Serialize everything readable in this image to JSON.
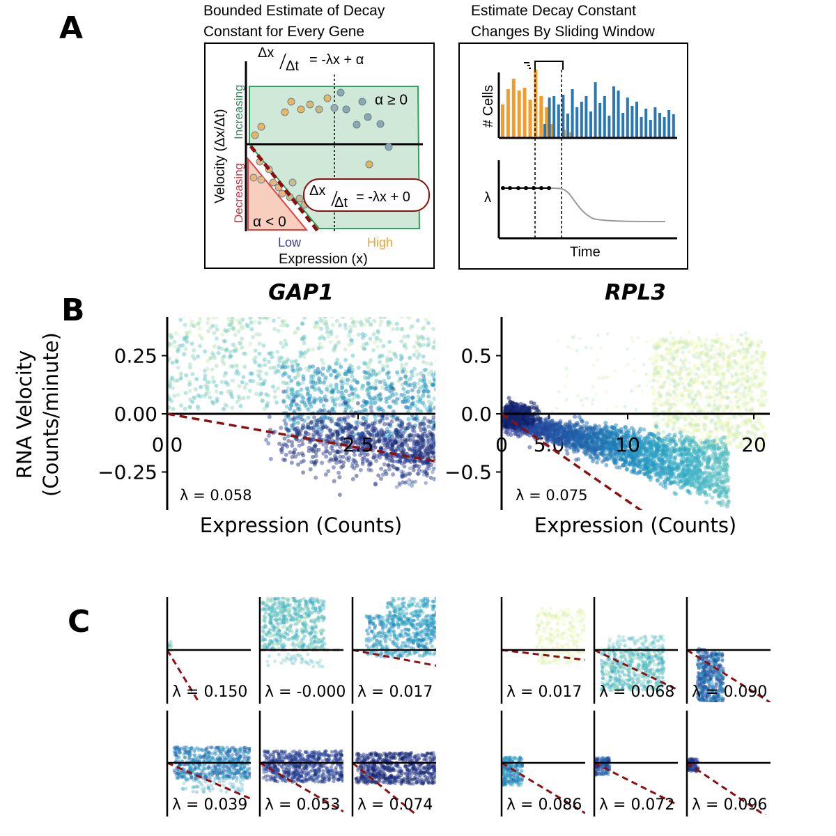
{
  "panel_letters": {
    "a": "A",
    "b": "B",
    "c": "C"
  },
  "panel_a": {
    "left": {
      "title_line1": "Bounded Estimate of Decay",
      "title_line2": "Constant for Every Gene",
      "eq_top_num": "Δx",
      "eq_top_den": "Δt",
      "eq_top_rhs": "= -λx + α",
      "eq_box_num": "Δx",
      "eq_box_den": "Δt",
      "eq_box_rhs": "= -λx + 0",
      "alpha_pos": "α ≥ 0",
      "alpha_neg": "α < 0",
      "ylabel": "Velocity (Δx/Δt)",
      "increasing": "Increasing",
      "decreasing": "Decreasing",
      "low": "Low",
      "high": "High",
      "xlabel": "Expression (x)"
    },
    "right": {
      "title_line1": "Estimate Decay Constant",
      "title_line2": "Changes By Sliding Window",
      "ylabel_top": "# Cells",
      "ylabel_bottom": "λ",
      "xlabel": "Time"
    },
    "colors": {
      "orange": "#f39c28",
      "blue": "#2878b8",
      "green_fill": "#cfe8d7",
      "green_line": "#2ea35a",
      "red_fill": "#f8cfbe",
      "red_line": "#e04040",
      "dashed_red": "#8b1010",
      "increasing": "#2e8b57",
      "decreasing": "#d03040",
      "low": "#3c3c9c",
      "high": "#f0a030"
    }
  },
  "chart_data": [
    {
      "type": "scatter",
      "title": "GAP1",
      "xlabel": "Expression (Counts)",
      "ylabel": "RNA Velocity\n(Counts/minute)",
      "xlim": [
        0,
        7.0
      ],
      "ylim": [
        -0.4,
        0.42
      ],
      "xticks": [
        0.0,
        2.5,
        5.0
      ],
      "xtick_labels": [
        "0.0",
        "2.5",
        "5.0"
      ],
      "yticks": [
        0.25,
        0.0,
        -0.25
      ],
      "ytick_labels": [
        "0.25",
        "0.00",
        "−0.25"
      ],
      "lambda": 0.058,
      "annotation": "λ = 0.058"
    },
    {
      "type": "scatter",
      "title": "RPL3",
      "xlabel": "Expression (Counts)",
      "ylabel": "",
      "xlim": [
        0,
        21
      ],
      "ylim": [
        -0.8,
        0.8
      ],
      "xticks": [
        0,
        10,
        20
      ],
      "xtick_labels": [
        "0",
        "10",
        "20"
      ],
      "yticks": [
        0.5,
        0.0,
        -0.5
      ],
      "ytick_labels": [
        "0.5",
        "0.0",
        "−0.5"
      ],
      "lambda": 0.075,
      "annotation": "λ = 0.075"
    },
    {
      "type": "scatter",
      "gene": "GAP1",
      "windows": [
        {
          "lambda": 0.15,
          "label": "λ = 0.150"
        },
        {
          "lambda": -0.0,
          "label": "λ = -0.000"
        },
        {
          "lambda": 0.017,
          "label": "λ = 0.017"
        },
        {
          "lambda": 0.039,
          "label": "λ = 0.039"
        },
        {
          "lambda": 0.053,
          "label": "λ = 0.053"
        },
        {
          "lambda": 0.074,
          "label": "λ = 0.074"
        }
      ]
    },
    {
      "type": "scatter",
      "gene": "RPL3",
      "windows": [
        {
          "lambda": 0.017,
          "label": "λ = 0.017"
        },
        {
          "lambda": 0.068,
          "label": "λ = 0.068"
        },
        {
          "lambda": 0.09,
          "label": "λ = 0.090"
        },
        {
          "lambda": 0.086,
          "label": "λ = 0.086"
        },
        {
          "lambda": 0.072,
          "label": "λ = 0.072"
        },
        {
          "lambda": 0.096,
          "label": "λ = 0.096"
        }
      ]
    }
  ]
}
